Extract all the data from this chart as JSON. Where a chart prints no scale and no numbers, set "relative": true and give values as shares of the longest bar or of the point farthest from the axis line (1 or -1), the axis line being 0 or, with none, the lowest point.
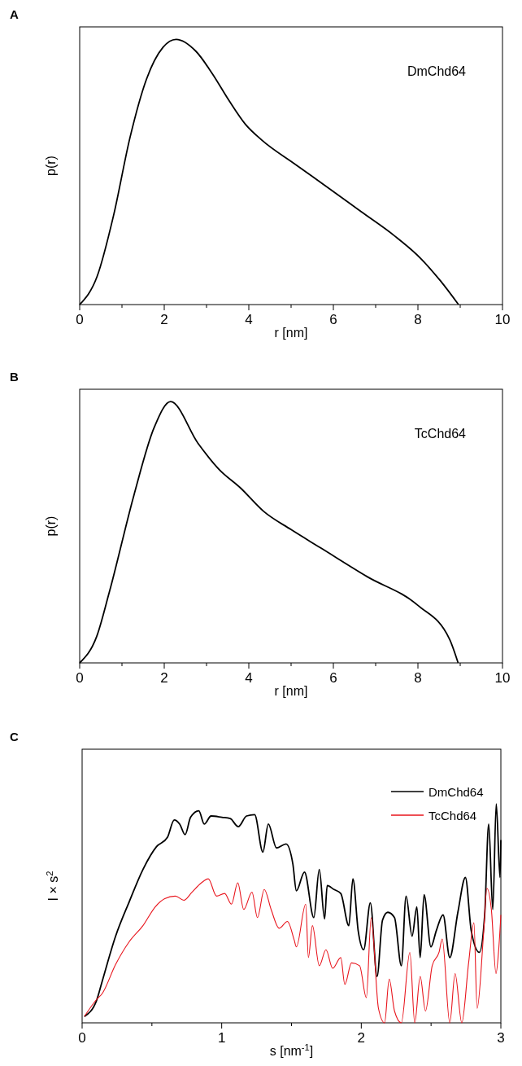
{
  "chart_data": [
    {
      "type": "line",
      "title": "A",
      "xlabel": "r [nm]",
      "ylabel": "p(r)",
      "relative": true,
      "xlim": [
        0,
        10
      ],
      "xticks": [
        0,
        {
          "value": 1,
          "label": null
        },
        2,
        {
          "value": 3,
          "label": null
        },
        4,
        {
          "value": 5,
          "label": null
        },
        6,
        {
          "value": 7,
          "label": null
        },
        8,
        {
          "value": 9,
          "label": null
        },
        10
      ],
      "series": [
        {
          "name": "DmChd64",
          "color": "#000000",
          "x": [
            0,
            0.41,
            0.8,
            1.19,
            1.58,
            1.97,
            2.28,
            2.75,
            3.14,
            3.53,
            3.92,
            4.31,
            5.09,
            5.88,
            6.66,
            7.44,
            8.06,
            8.53,
            8.96
          ],
          "values": [
            0,
            0.105,
            0.335,
            0.63,
            0.85,
            0.97,
            1,
            0.955,
            0.87,
            0.77,
            0.68,
            0.62,
            0.53,
            0.44,
            0.35,
            0.26,
            0.175,
            0.09,
            0
          ]
        }
      ]
    },
    {
      "type": "line",
      "title": "B",
      "xlabel": "r [nm]",
      "ylabel": "p(r)",
      "relative": true,
      "xlim": [
        0,
        10
      ],
      "xticks": [
        0,
        {
          "value": 1,
          "label": null
        },
        2,
        {
          "value": 3,
          "label": null
        },
        4,
        {
          "value": 5,
          "label": null
        },
        6,
        {
          "value": 7,
          "label": null
        },
        8,
        {
          "value": 9,
          "label": null
        },
        10
      ],
      "series": [
        {
          "name": "TcChd64",
          "color": "#000000",
          "x": [
            0,
            0.4,
            0.7,
            1.28,
            1.76,
            2.15,
            2.8,
            3.3,
            3.8,
            4.35,
            5.0,
            5.7,
            6.8,
            8.0,
            8.75,
            8.95
          ],
          "values": [
            0,
            0.1,
            0.27,
            0.64,
            0.9,
            1,
            0.84,
            0.74,
            0.67,
            0.58,
            0.51,
            0.44,
            0.33,
            0.22,
            0.09,
            0
          ]
        }
      ]
    },
    {
      "type": "line",
      "title": "C",
      "xlabel": "s [nm$^{-1}$]",
      "ylabel": "I × s$^{2}$",
      "relative": true,
      "legend": "top right",
      "xlim": [
        0,
        3
      ],
      "xticks": [
        0,
        {
          "value": 0.5,
          "label": null
        },
        1,
        {
          "value": 1.5,
          "label": null
        },
        2,
        {
          "value": 2.5,
          "label": null
        },
        3
      ],
      "series": [
        {
          "name": "DmChd64",
          "color": "#000000",
          "x": [
            0.016,
            0.104,
            0.143,
            0.24,
            0.338,
            0.436,
            0.533,
            0.611,
            0.66,
            0.699,
            0.738,
            0.777,
            0.836,
            0.875,
            0.924,
            1.002,
            1.061,
            1.119,
            1.178,
            1.236,
            1.295,
            1.334,
            1.393,
            1.461,
            1.51,
            1.535,
            1.593,
            1.66,
            1.699,
            1.737,
            1.756,
            1.805,
            1.853,
            1.911,
            1.94,
            1.978,
            2.017,
            2.065,
            2.113,
            2.152,
            2.19,
            2.238,
            2.287,
            2.321,
            2.364,
            2.398,
            2.422,
            2.45,
            2.499,
            2.537,
            2.586,
            2.634,
            2.692,
            2.746,
            2.788,
            2.846,
            2.884,
            2.913,
            2.942,
            2.967,
            2.994,
            3.0
          ],
          "values": [
            0.029,
            0.103,
            0.188,
            0.396,
            0.554,
            0.701,
            0.805,
            0.847,
            0.927,
            0.908,
            0.86,
            0.939,
            0.969,
            0.908,
            0.945,
            0.939,
            0.933,
            0.896,
            0.945,
            0.951,
            0.78,
            0.908,
            0.799,
            0.817,
            0.725,
            0.603,
            0.689,
            0.481,
            0.701,
            0.475,
            0.627,
            0.609,
            0.591,
            0.444,
            0.658,
            0.42,
            0.334,
            0.548,
            0.212,
            0.469,
            0.505,
            0.481,
            0.261,
            0.579,
            0.396,
            0.53,
            0.298,
            0.585,
            0.347,
            0.42,
            0.493,
            0.298,
            0.505,
            0.664,
            0.42,
            0.322,
            0.493,
            0.908,
            0.518,
            1,
            0.664,
            0.835
          ]
        },
        {
          "name": "TcChd64",
          "color": "#e8141c",
          "x": [
            0.016,
            0.104,
            0.143,
            0.24,
            0.338,
            0.436,
            0.524,
            0.592,
            0.668,
            0.729,
            0.787,
            0.855,
            0.904,
            0.963,
            1.021,
            1.07,
            1.115,
            1.158,
            1.217,
            1.256,
            1.305,
            1.354,
            1.412,
            1.471,
            1.52,
            1.535,
            1.602,
            1.621,
            1.65,
            1.699,
            1.747,
            1.795,
            1.853,
            1.882,
            1.93,
            1.988,
            2.036,
            2.071,
            2.123,
            2.167,
            2.2,
            2.238,
            2.287,
            2.348,
            2.383,
            2.422,
            2.46,
            2.508,
            2.557,
            2.58,
            2.634,
            2.672,
            2.72,
            2.769,
            2.807,
            2.83,
            2.875,
            2.9,
            2.932,
            2.965,
            2.986,
            3.0
          ],
          "values": [
            0.029,
            0.107,
            0.133,
            0.267,
            0.371,
            0.444,
            0.53,
            0.567,
            0.579,
            0.56,
            0.597,
            0.64,
            0.658,
            0.579,
            0.591,
            0.542,
            0.64,
            0.518,
            0.597,
            0.481,
            0.609,
            0.518,
            0.432,
            0.463,
            0.377,
            0.347,
            0.542,
            0.298,
            0.444,
            0.261,
            0.334,
            0.249,
            0.298,
            0.176,
            0.274,
            0.261,
            0.115,
            0.481,
            0.066,
            0,
            0.2,
            0.054,
            0,
            0.322,
            0,
            0.212,
            0.054,
            0.261,
            0.322,
            0.383,
            0,
            0.225,
            0,
            0.274,
            0.457,
            0.066,
            0.396,
            0.615,
            0.518,
            0.225,
            0.347,
            0.493
          ]
        }
      ]
    }
  ]
}
